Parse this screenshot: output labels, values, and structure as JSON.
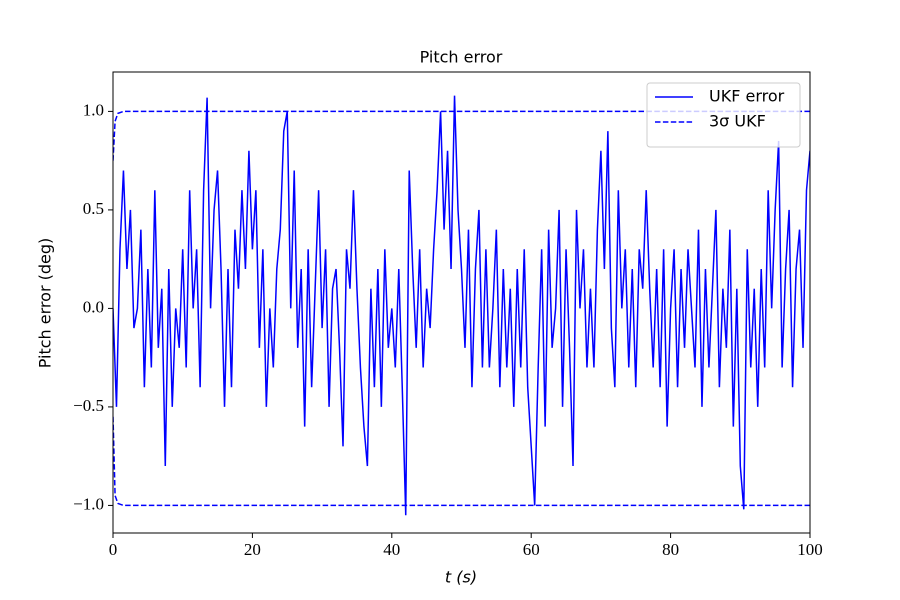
{
  "chart_data": {
    "type": "line",
    "title": "Pitch error",
    "xlabel": "t (s)",
    "ylabel": "Pitch error (deg)",
    "xlim": [
      0,
      100
    ],
    "xticks": [
      0,
      20,
      40,
      60,
      80,
      100
    ],
    "ylim": [
      -1.14,
      1.2
    ],
    "yticks": [
      {
        "value": -1,
        "label": "−1.0"
      },
      {
        "value": -0.5,
        "label": "−0.5"
      },
      {
        "value": 0,
        "label": "0.0"
      },
      0.5,
      {
        "value": 1,
        "label": "1.0"
      }
    ],
    "legend": "upper right",
    "series": [
      {
        "name": "UKF error",
        "color": "#0000ff",
        "linestyle": "solid",
        "x": [
          0,
          0.5,
          1,
          1.5,
          2,
          2.5,
          3,
          3.5,
          4,
          4.5,
          5,
          5.5,
          6,
          6.5,
          7,
          7.5,
          8,
          8.5,
          9,
          9.5,
          10,
          10.5,
          11,
          11.5,
          12,
          12.5,
          13,
          13.5,
          14,
          14.5,
          15,
          15.5,
          16,
          16.5,
          17,
          17.5,
          18,
          18.5,
          19,
          19.5,
          20,
          20.5,
          21,
          21.5,
          22,
          22.5,
          23,
          23.5,
          24,
          24.5,
          25,
          25.5,
          26,
          26.5,
          27,
          27.5,
          28,
          28.5,
          29,
          29.5,
          30,
          30.5,
          31,
          31.5,
          32,
          32.5,
          33,
          33.5,
          34,
          34.5,
          35,
          35.5,
          36,
          36.5,
          37,
          37.5,
          38,
          38.5,
          39,
          39.5,
          40,
          40.5,
          41,
          41.5,
          42,
          42.5,
          43,
          43.5,
          44,
          44.5,
          45,
          45.5,
          46,
          46.5,
          47,
          47.5,
          48,
          48.5,
          49,
          49.5,
          50,
          50.5,
          51,
          51.5,
          52,
          52.5,
          53,
          53.5,
          54,
          54.5,
          55,
          55.5,
          56,
          56.5,
          57,
          57.5,
          58,
          58.5,
          59,
          59.5,
          60,
          60.5,
          61,
          61.5,
          62,
          62.5,
          63,
          63.5,
          64,
          64.5,
          65,
          65.5,
          66,
          66.5,
          67,
          67.5,
          68,
          68.5,
          69,
          69.5,
          70,
          70.5,
          71,
          71.5,
          72,
          72.5,
          73,
          73.5,
          74,
          74.5,
          75,
          75.5,
          76,
          76.5,
          77,
          77.5,
          78,
          78.5,
          79,
          79.5,
          80,
          80.5,
          81,
          81.5,
          82,
          82.5,
          83,
          83.5,
          84,
          84.5,
          85,
          85.5,
          86,
          86.5,
          87,
          87.5,
          88,
          88.5,
          89,
          89.5,
          90,
          90.5,
          91,
          91.5,
          92,
          92.5,
          93,
          93.5,
          94,
          94.5,
          95,
          95.5,
          96,
          96.5,
          97,
          97.5,
          98,
          98.5,
          99,
          99.5,
          100
        ],
        "values": [
          0,
          -0.5,
          0.3,
          0.7,
          0.2,
          0.5,
          -0.1,
          0,
          0.4,
          -0.4,
          0.2,
          -0.3,
          0.6,
          -0.2,
          0.1,
          -0.8,
          0.2,
          -0.5,
          0,
          -0.2,
          0.3,
          -0.3,
          0.6,
          0,
          0.3,
          -0.4,
          0.6,
          1.07,
          0,
          0.5,
          0.7,
          0.2,
          -0.5,
          0.2,
          -0.4,
          0.4,
          0.1,
          0.6,
          0.2,
          0.8,
          0.3,
          0.6,
          -0.2,
          0.3,
          -0.5,
          0,
          -0.3,
          0.2,
          0.4,
          0.9,
          1.0,
          0,
          0.7,
          -0.2,
          0.2,
          -0.6,
          0.3,
          -0.4,
          0.1,
          0.6,
          -0.1,
          0.3,
          -0.5,
          0.1,
          0.2,
          -0.2,
          -0.7,
          0.3,
          0.1,
          0.6,
          0.1,
          -0.3,
          -0.6,
          -0.8,
          0.1,
          -0.4,
          0.2,
          -0.5,
          0.3,
          -0.2,
          0,
          -0.3,
          0.2,
          -0.4,
          -1.05,
          0.7,
          0.2,
          -0.2,
          0.3,
          -0.3,
          0.1,
          -0.1,
          0.3,
          0.6,
          1.0,
          0.4,
          0.8,
          0.2,
          1.08,
          0.5,
          0.2,
          -0.2,
          0.4,
          -0.4,
          0.2,
          0.5,
          -0.3,
          0.3,
          -0.3,
          0,
          0.4,
          -0.4,
          0.2,
          -0.3,
          0.1,
          -0.5,
          0.2,
          -0.3,
          0.3,
          -0.4,
          -0.7,
          -1.0,
          -0.3,
          0.3,
          -0.6,
          0.4,
          -0.2,
          0,
          0.5,
          -0.5,
          0.3,
          -0.2,
          -0.8,
          0.5,
          0,
          0.3,
          -0.3,
          0.1,
          -0.3,
          0.4,
          0.8,
          0.2,
          0.9,
          -0.1,
          -0.4,
          0.6,
          0,
          0.3,
          -0.3,
          0.2,
          -0.4,
          0.3,
          0.1,
          0.6,
          0.1,
          -0.3,
          0.2,
          -0.4,
          0.3,
          -0.6,
          0,
          0.3,
          -0.4,
          0.2,
          -0.2,
          0.3,
          0,
          -0.3,
          0.4,
          -0.5,
          0.2,
          -0.3,
          0.1,
          0.5,
          -0.4,
          0.1,
          -0.2,
          0.4,
          -0.6,
          0.1,
          -0.8,
          -1.02,
          0.3,
          -0.3,
          0.1,
          -0.5,
          0.2,
          -0.3,
          0.6,
          0,
          0.5,
          0.85,
          -0.3,
          0.2,
          0.5,
          -0.4,
          0.2,
          0.4,
          -0.2,
          0.6,
          0.8
        ]
      },
      {
        "name": "3σ UKF",
        "color": "#0000ff",
        "linestyle": "dashed",
        "x": [
          0,
          0.3,
          0.7,
          1.5,
          10,
          20,
          30,
          40,
          50,
          60,
          70,
          80,
          90,
          100
        ],
        "values": [
          0.75,
          0.95,
          0.99,
          1.0,
          1.0,
          1.0,
          1.0,
          1.0,
          1.0,
          1.0,
          1.0,
          1.0,
          1.0,
          1.0
        ]
      },
      {
        "name": null,
        "color": "#0000ff",
        "linestyle": "dashed",
        "x": [
          0,
          0.3,
          0.7,
          1.5,
          10,
          20,
          30,
          40,
          50,
          60,
          70,
          80,
          90,
          100
        ],
        "values": [
          -0.55,
          -0.95,
          -0.99,
          -1.0,
          -1.0,
          -1.0,
          -1.0,
          -1.0,
          -1.0,
          -1.0,
          -1.0,
          -1.0,
          -1.0,
          -1.0
        ]
      }
    ]
  }
}
